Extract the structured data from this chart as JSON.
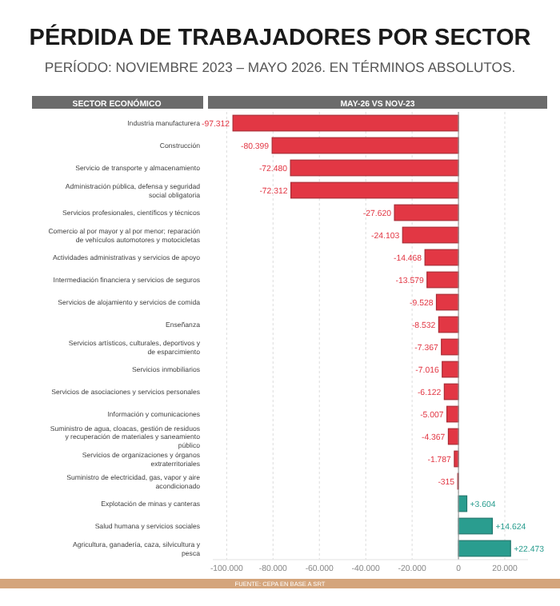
{
  "chart_data": {
    "type": "bar",
    "orientation": "horizontal",
    "title": "PÉRDIDA DE TRABAJADORES POR SECTOR",
    "subtitle": "PERÍODO: NOVIEMBRE 2023 – MAYO 2026. EN TÉRMINOS ABSOLUTOS.",
    "ylabel": "SECTOR ECONÓMICO",
    "xlabel": "MAY-26 VS NOV-23",
    "categories": [
      "Industria manufacturera",
      "Construcción",
      "Servicio de transporte y almacenamiento",
      "Administración pública, defensa y seguridad social obligatoria",
      "Servicios profesionales, científicos y técnicos",
      "Comercio al por mayor y al por menor; reparación de vehículos automotores y motocicletas",
      "Actividades administrativas y servicios de apoyo",
      "Intermediación financiera y servicios de seguros",
      "Servicios de alojamiento y servicios de comida",
      "Enseñanza",
      "Servicios artísticos, culturales, deportivos y de esparcimiento",
      "Servicios inmobiliarios",
      "Servicios de asociaciones y servicios personales",
      "Información y comunicaciones",
      "Suministro de agua, cloacas, gestión de residuos y recuperación de materiales y saneamiento público",
      "Servicios de organizaciones y órganos extraterritoriales",
      "Suministro de electricidad, gas, vapor y aire acondicionado",
      "Explotación de minas y canteras",
      "Salud humana y servicios sociales",
      "Agricultura, ganadería, caza, silvicultura y pesca"
    ],
    "values": [
      -97312,
      -80399,
      -72480,
      -72312,
      -27620,
      -24103,
      -14468,
      -13579,
      -9528,
      -8532,
      -7367,
      -7016,
      -6122,
      -5007,
      -4367,
      -1787,
      -315,
      3604,
      14624,
      22473
    ],
    "value_labels": [
      "-97.312",
      "-80.399",
      "-72.480",
      "-72.312",
      "-27.620",
      "-24.103",
      "-14.468",
      "-13.579",
      "-9.528",
      "-8.532",
      "-7.367",
      "-7.016",
      "-6.122",
      "-5.007",
      "-4.367",
      "-1.787",
      "-315",
      "+3.604",
      "+14.624",
      "+22.473"
    ],
    "colors": [
      "#e23744",
      "#e23744",
      "#e23744",
      "#e23744",
      "#e23744",
      "#e23744",
      "#e23744",
      "#e23744",
      "#e23744",
      "#e23744",
      "#e23744",
      "#e23744",
      "#e23744",
      "#e23744",
      "#e23744",
      "#e23744",
      "#e23744",
      "#2a9d8f",
      "#2a9d8f",
      "#2a9d8f"
    ],
    "xlim": [
      -106000,
      30000
    ],
    "xticks": [
      {
        "value": -100000,
        "label": "-100.000"
      },
      {
        "value": -80000,
        "label": "-80.000"
      },
      {
        "value": -60000,
        "label": "-60.000"
      },
      {
        "value": -40000,
        "label": "-40.000"
      },
      {
        "value": -20000,
        "label": "-20.000"
      },
      0,
      {
        "value": 20000,
        "label": "20.000"
      }
    ],
    "grid": "x",
    "annotations": [
      "FUENTE: CEPA EN BASE A SRT"
    ]
  }
}
